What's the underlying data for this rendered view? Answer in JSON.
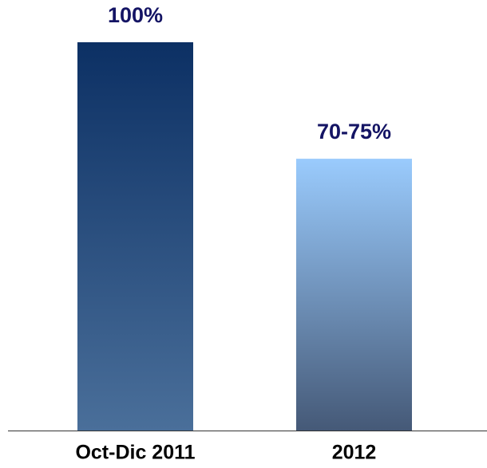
{
  "chart_data": {
    "type": "bar",
    "categories": [
      "Oct-Dic 2011",
      "2012"
    ],
    "values": [
      100,
      70
    ],
    "value_labels": [
      "100%",
      "70-75%"
    ],
    "colors": [
      [
        "#0c3064",
        "#4a6f9a"
      ],
      [
        "#9acbfd",
        "#455977"
      ]
    ],
    "ylim": [
      0,
      100
    ]
  }
}
